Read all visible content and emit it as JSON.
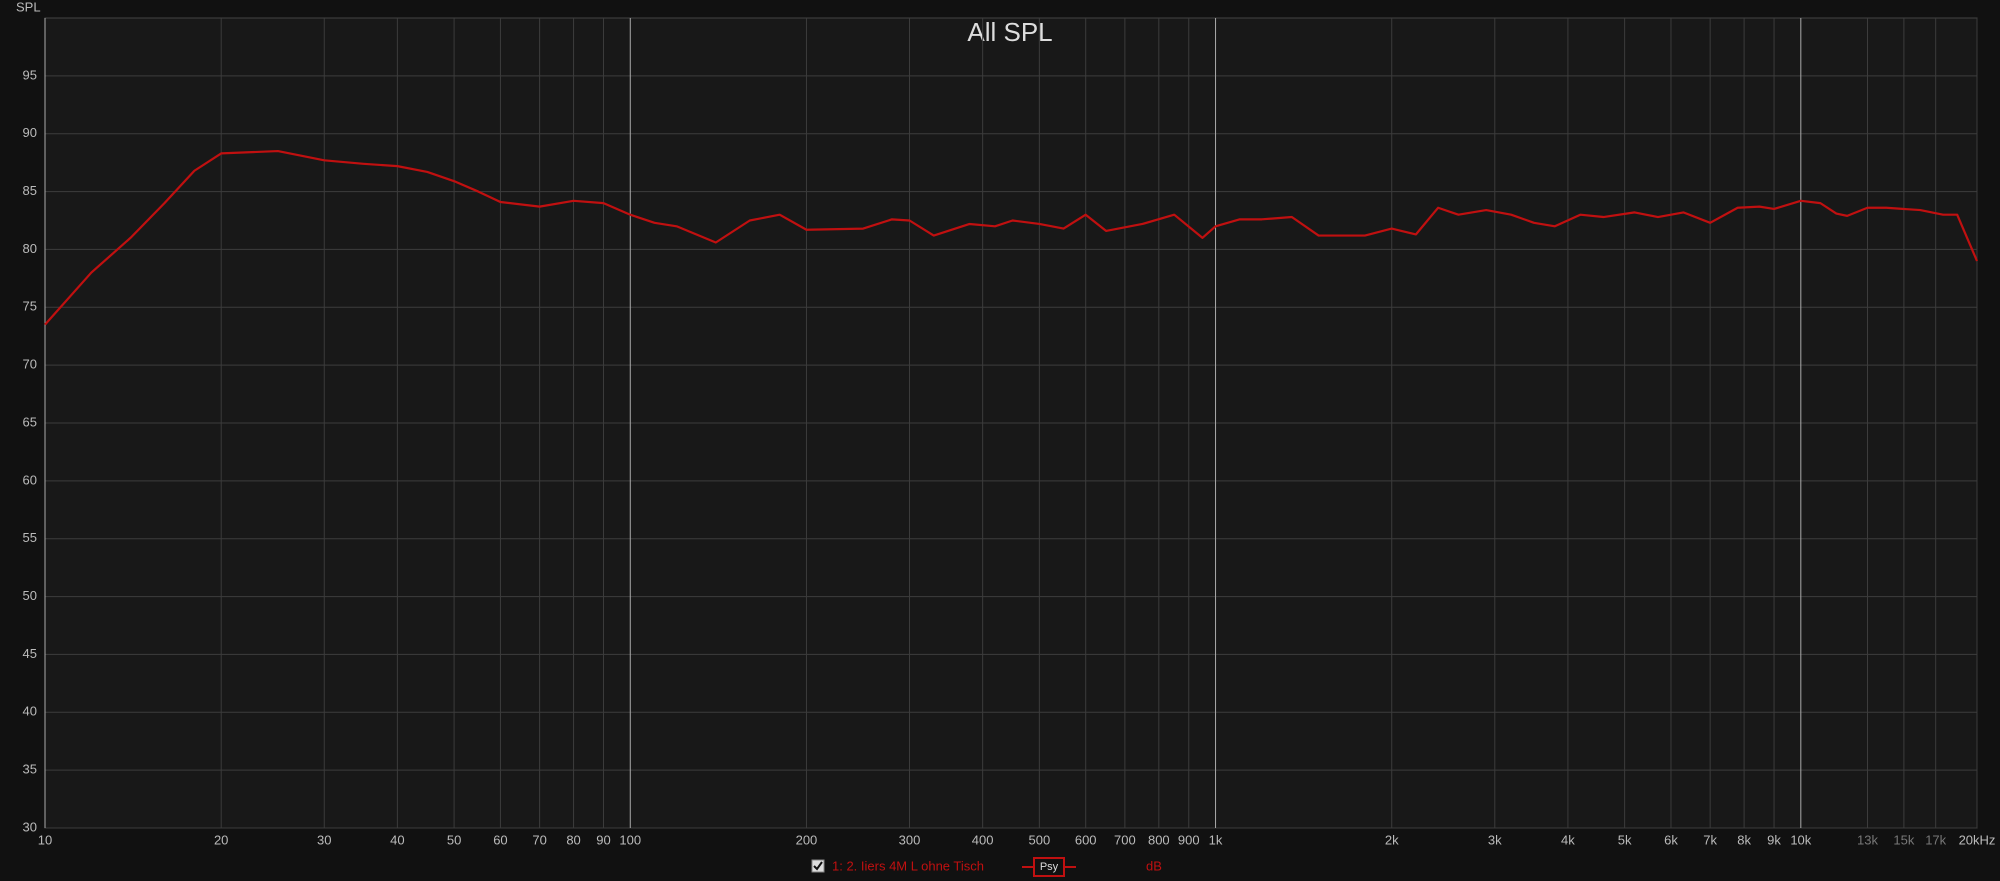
{
  "chart_data": {
    "type": "line",
    "title": "All SPL",
    "y_label": "SPL",
    "x": [
      10,
      12,
      14,
      16,
      18,
      20,
      25,
      30,
      35,
      40,
      45,
      50,
      55,
      60,
      70,
      80,
      90,
      100,
      110,
      120,
      140,
      160,
      180,
      200,
      250,
      280,
      300,
      330,
      380,
      420,
      450,
      500,
      550,
      600,
      650,
      750,
      850,
      950,
      1000,
      1100,
      1200,
      1350,
      1500,
      1800,
      2000,
      2200,
      2400,
      2600,
      2900,
      3200,
      3500,
      3800,
      4200,
      4600,
      5200,
      5700,
      6300,
      7000,
      7800,
      8500,
      9000,
      10000,
      10800,
      11500,
      12000,
      13000,
      14000,
      16000,
      17500,
      18500,
      20000
    ],
    "series": [
      {
        "name": "1: 2. Iiers 4M L ohne Tisch",
        "color": "#c01010",
        "values": [
          73.5,
          78,
          81,
          84,
          86.8,
          88.3,
          88.5,
          87.7,
          87.4,
          87.2,
          86.7,
          85.9,
          85,
          84.1,
          83.7,
          84.2,
          84,
          83,
          82.3,
          82,
          80.6,
          82.5,
          83,
          81.7,
          81.8,
          82.6,
          82.5,
          81.2,
          82.2,
          82,
          82.5,
          82.2,
          81.8,
          83,
          81.6,
          82.2,
          83,
          81,
          82,
          82.6,
          82.6,
          82.8,
          81.2,
          81.2,
          81.8,
          81.3,
          83.6,
          83,
          83.4,
          83,
          82.3,
          82,
          83,
          82.8,
          83.2,
          82.8,
          83.2,
          82.3,
          83.6,
          83.7,
          83.5,
          84.2,
          84,
          83.1,
          82.9,
          83.6,
          83.6,
          83.4,
          83,
          83,
          79
        ]
      }
    ],
    "xlim": [
      10,
      20000
    ],
    "ylim": [
      30,
      100
    ],
    "x_log": true,
    "grid": true,
    "xticks": [
      10,
      20,
      30,
      40,
      50,
      60,
      70,
      80,
      90,
      100,
      200,
      300,
      400,
      500,
      600,
      700,
      800,
      900,
      {
        "value": 1000,
        "label": "1k"
      },
      {
        "value": 2000,
        "label": "2k"
      },
      {
        "value": 3000,
        "label": "3k"
      },
      {
        "value": 4000,
        "label": "4k"
      },
      {
        "value": 5000,
        "label": "5k"
      },
      {
        "value": 6000,
        "label": "6k"
      },
      {
        "value": 7000,
        "label": "7k"
      },
      {
        "value": 8000,
        "label": "8k"
      },
      {
        "value": 9000,
        "label": "9k"
      },
      {
        "value": 10000,
        "label": "10k"
      },
      {
        "value": 13000,
        "label": "13k"
      },
      {
        "value": 15000,
        "label": "15k"
      },
      {
        "value": 17000,
        "label": "17k"
      },
      {
        "value": 20000,
        "label": "20kHz"
      }
    ],
    "yticks": [
      30,
      35,
      40,
      45,
      50,
      55,
      60,
      65,
      70,
      75,
      80,
      85,
      90,
      95
    ],
    "legend_button": "Psy",
    "legend_unit": "dB"
  }
}
